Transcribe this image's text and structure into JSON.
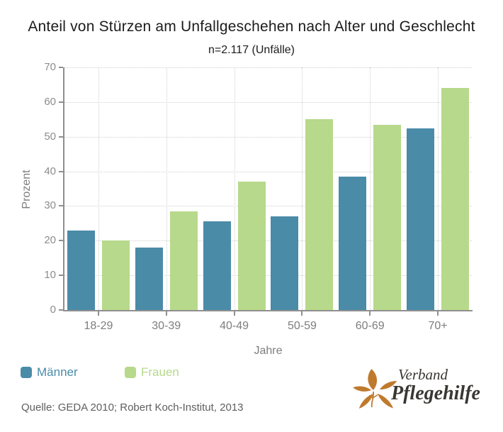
{
  "title": "Anteil von Stürzen am Unfallgeschehen nach Alter und Geschlecht",
  "subtitle": "n=2.117 (Unfälle)",
  "chart_data": {
    "type": "bar",
    "title": "Anteil von Stürzen am Unfallgeschehen nach Alter und Geschlecht",
    "subtitle": "n=2.117 (Unfälle)",
    "categories": [
      "18-29",
      "30-39",
      "40-49",
      "50-59",
      "60-69",
      "70+"
    ],
    "series": [
      {
        "name": "Männer",
        "color": "#4a8ba8",
        "values": [
          23,
          18,
          25.5,
          27,
          38.5,
          52.5
        ]
      },
      {
        "name": "Frauen",
        "color": "#b7d98b",
        "values": [
          20,
          28.5,
          37,
          55,
          53.5,
          64
        ]
      }
    ],
    "xlabel": "Jahre",
    "ylabel": "Prozent",
    "ylim": [
      0,
      70
    ],
    "ytick_step": 10,
    "grid": true,
    "legend_position": "bottom-left"
  },
  "legend": {
    "items": [
      {
        "label": "Männer",
        "color": "#4a8ba8"
      },
      {
        "label": "Frauen",
        "color": "#b7d98b"
      }
    ]
  },
  "source": "Quelle: GEDA 2010; Robert Koch-Institut, 2013",
  "logo": {
    "line1": "Verband",
    "line2": "Pflegehilfe",
    "leaf_color": "#bf7a2e",
    "text_color": "#3a3733"
  }
}
